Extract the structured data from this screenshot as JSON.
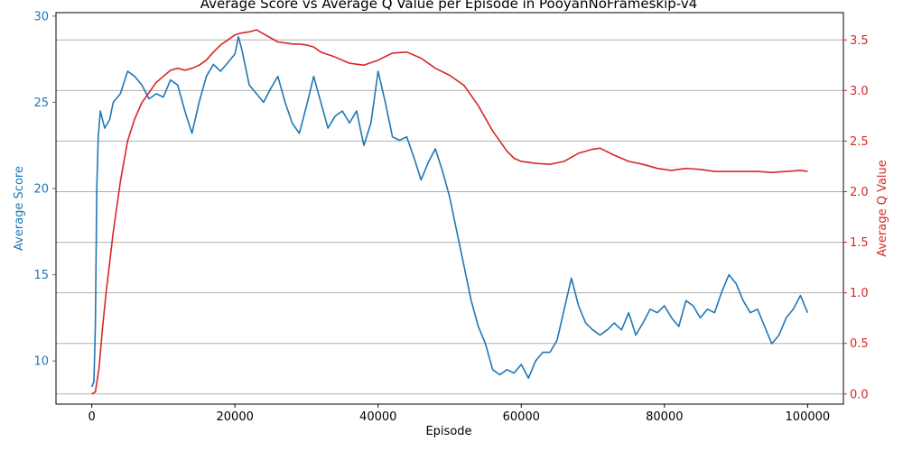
{
  "chart_data": {
    "type": "line",
    "title": "Average Score vs Average Q Value per Episode in PooyanNoFrameskip-v4",
    "xlabel": "Episode",
    "ylabel_left": "Average Score",
    "ylabel_right": "Average Q Value",
    "xlim": [
      -5000,
      105000
    ],
    "ylim_left": [
      7.5,
      30.2
    ],
    "ylim_right": [
      -0.1,
      3.77
    ],
    "xticks": [
      0,
      20000,
      40000,
      60000,
      80000,
      100000
    ],
    "xtick_labels": [
      "0",
      "20000",
      "40000",
      "60000",
      "80000",
      "100000"
    ],
    "yticks_left": [
      10,
      15,
      20,
      25,
      30
    ],
    "yticks_right": [
      0.0,
      0.5,
      1.0,
      1.5,
      2.0,
      2.5,
      3.0,
      3.5
    ],
    "ytick_labels_right": [
      "0.0",
      "0.5",
      "1.0",
      "1.5",
      "2.0",
      "2.5",
      "3.0",
      "3.5"
    ],
    "grid": "horizontal (right axis ticks)",
    "colors": {
      "score": "#1f77b4",
      "q": "#d62728"
    },
    "series": [
      {
        "axis": "left",
        "color": "#1f77b4",
        "x": [
          0,
          300,
          500,
          700,
          900,
          1200,
          1800,
          2500,
          3000,
          4000,
          5000,
          6000,
          7000,
          8000,
          9000,
          10000,
          11000,
          12000,
          13000,
          14000,
          15000,
          16000,
          17000,
          18000,
          19000,
          20000,
          20500,
          21000,
          22000,
          23000,
          24000,
          25000,
          26000,
          27000,
          28000,
          29000,
          30000,
          31000,
          32000,
          33000,
          34000,
          35000,
          36000,
          37000,
          38000,
          39000,
          40000,
          41000,
          42000,
          43000,
          44000,
          45000,
          46000,
          47000,
          48000,
          49000,
          50000,
          51000,
          52000,
          53000,
          54000,
          55000,
          56000,
          57000,
          58000,
          59000,
          60000,
          61000,
          62000,
          63000,
          64000,
          65000,
          66000,
          67000,
          68000,
          69000,
          70000,
          71000,
          72000,
          73000,
          74000,
          75000,
          76000,
          77000,
          78000,
          79000,
          80000,
          81000,
          82000,
          83000,
          84000,
          85000,
          86000,
          87000,
          88000,
          89000,
          90000,
          91000,
          92000,
          93000,
          94000,
          95000,
          96000,
          97000,
          98000,
          99000,
          100000
        ],
        "values": [
          8.5,
          8.8,
          12.0,
          20.0,
          23.0,
          24.5,
          23.5,
          24.0,
          25.0,
          25.5,
          26.8,
          26.5,
          26.0,
          25.2,
          25.5,
          25.3,
          26.3,
          26.0,
          24.5,
          23.2,
          25.0,
          26.5,
          27.2,
          26.8,
          27.3,
          27.8,
          28.8,
          28.0,
          26.0,
          25.5,
          25.0,
          25.8,
          26.5,
          25.0,
          23.8,
          23.2,
          24.8,
          26.5,
          25.0,
          23.5,
          24.2,
          24.5,
          23.8,
          24.5,
          22.5,
          23.8,
          26.8,
          25.0,
          23.0,
          22.8,
          23.0,
          21.8,
          20.5,
          21.5,
          22.3,
          21.0,
          19.5,
          17.5,
          15.5,
          13.5,
          12.0,
          11.0,
          9.5,
          9.2,
          9.5,
          9.3,
          9.8,
          9.0,
          10.0,
          10.5,
          10.5,
          11.2,
          13.0,
          14.8,
          13.2,
          12.2,
          11.8,
          11.5,
          11.8,
          12.2,
          11.8,
          12.8,
          11.5,
          12.2,
          13.0,
          12.8,
          13.2,
          12.5,
          12.0,
          13.5,
          13.2,
          12.5,
          13.0,
          12.8,
          14.0,
          15.0,
          14.5,
          13.5,
          12.8,
          13.0,
          12.0,
          11.0,
          11.5,
          12.5,
          13.0,
          13.8,
          12.8
        ]
      },
      {
        "axis": "right",
        "color": "#d62728",
        "x": [
          0,
          500,
          1000,
          1500,
          2000,
          3000,
          4000,
          5000,
          6000,
          7000,
          8000,
          9000,
          10000,
          11000,
          12000,
          13000,
          14000,
          15000,
          16000,
          17000,
          18000,
          19000,
          20000,
          21000,
          22000,
          23000,
          24000,
          25000,
          26000,
          27000,
          28000,
          29000,
          30000,
          31000,
          32000,
          34000,
          36000,
          38000,
          40000,
          42000,
          44000,
          46000,
          48000,
          50000,
          52000,
          54000,
          56000,
          58000,
          59000,
          60000,
          62000,
          64000,
          66000,
          68000,
          70000,
          71000,
          73000,
          75000,
          77000,
          79000,
          81000,
          83000,
          85000,
          87000,
          89000,
          91000,
          93000,
          95000,
          97000,
          99000,
          100000
        ],
        "values": [
          0.0,
          0.02,
          0.25,
          0.65,
          1.0,
          1.6,
          2.1,
          2.5,
          2.72,
          2.88,
          2.98,
          3.08,
          3.14,
          3.2,
          3.22,
          3.2,
          3.22,
          3.25,
          3.3,
          3.38,
          3.45,
          3.5,
          3.55,
          3.57,
          3.58,
          3.6,
          3.56,
          3.52,
          3.48,
          3.47,
          3.46,
          3.46,
          3.45,
          3.43,
          3.38,
          3.33,
          3.27,
          3.25,
          3.3,
          3.37,
          3.38,
          3.32,
          3.22,
          3.15,
          3.05,
          2.85,
          2.6,
          2.4,
          2.33,
          2.3,
          2.28,
          2.27,
          2.3,
          2.38,
          2.42,
          2.43,
          2.36,
          2.3,
          2.27,
          2.23,
          2.21,
          2.23,
          2.22,
          2.2,
          2.2,
          2.2,
          2.2,
          2.19,
          2.2,
          2.21,
          2.2
        ]
      }
    ]
  }
}
